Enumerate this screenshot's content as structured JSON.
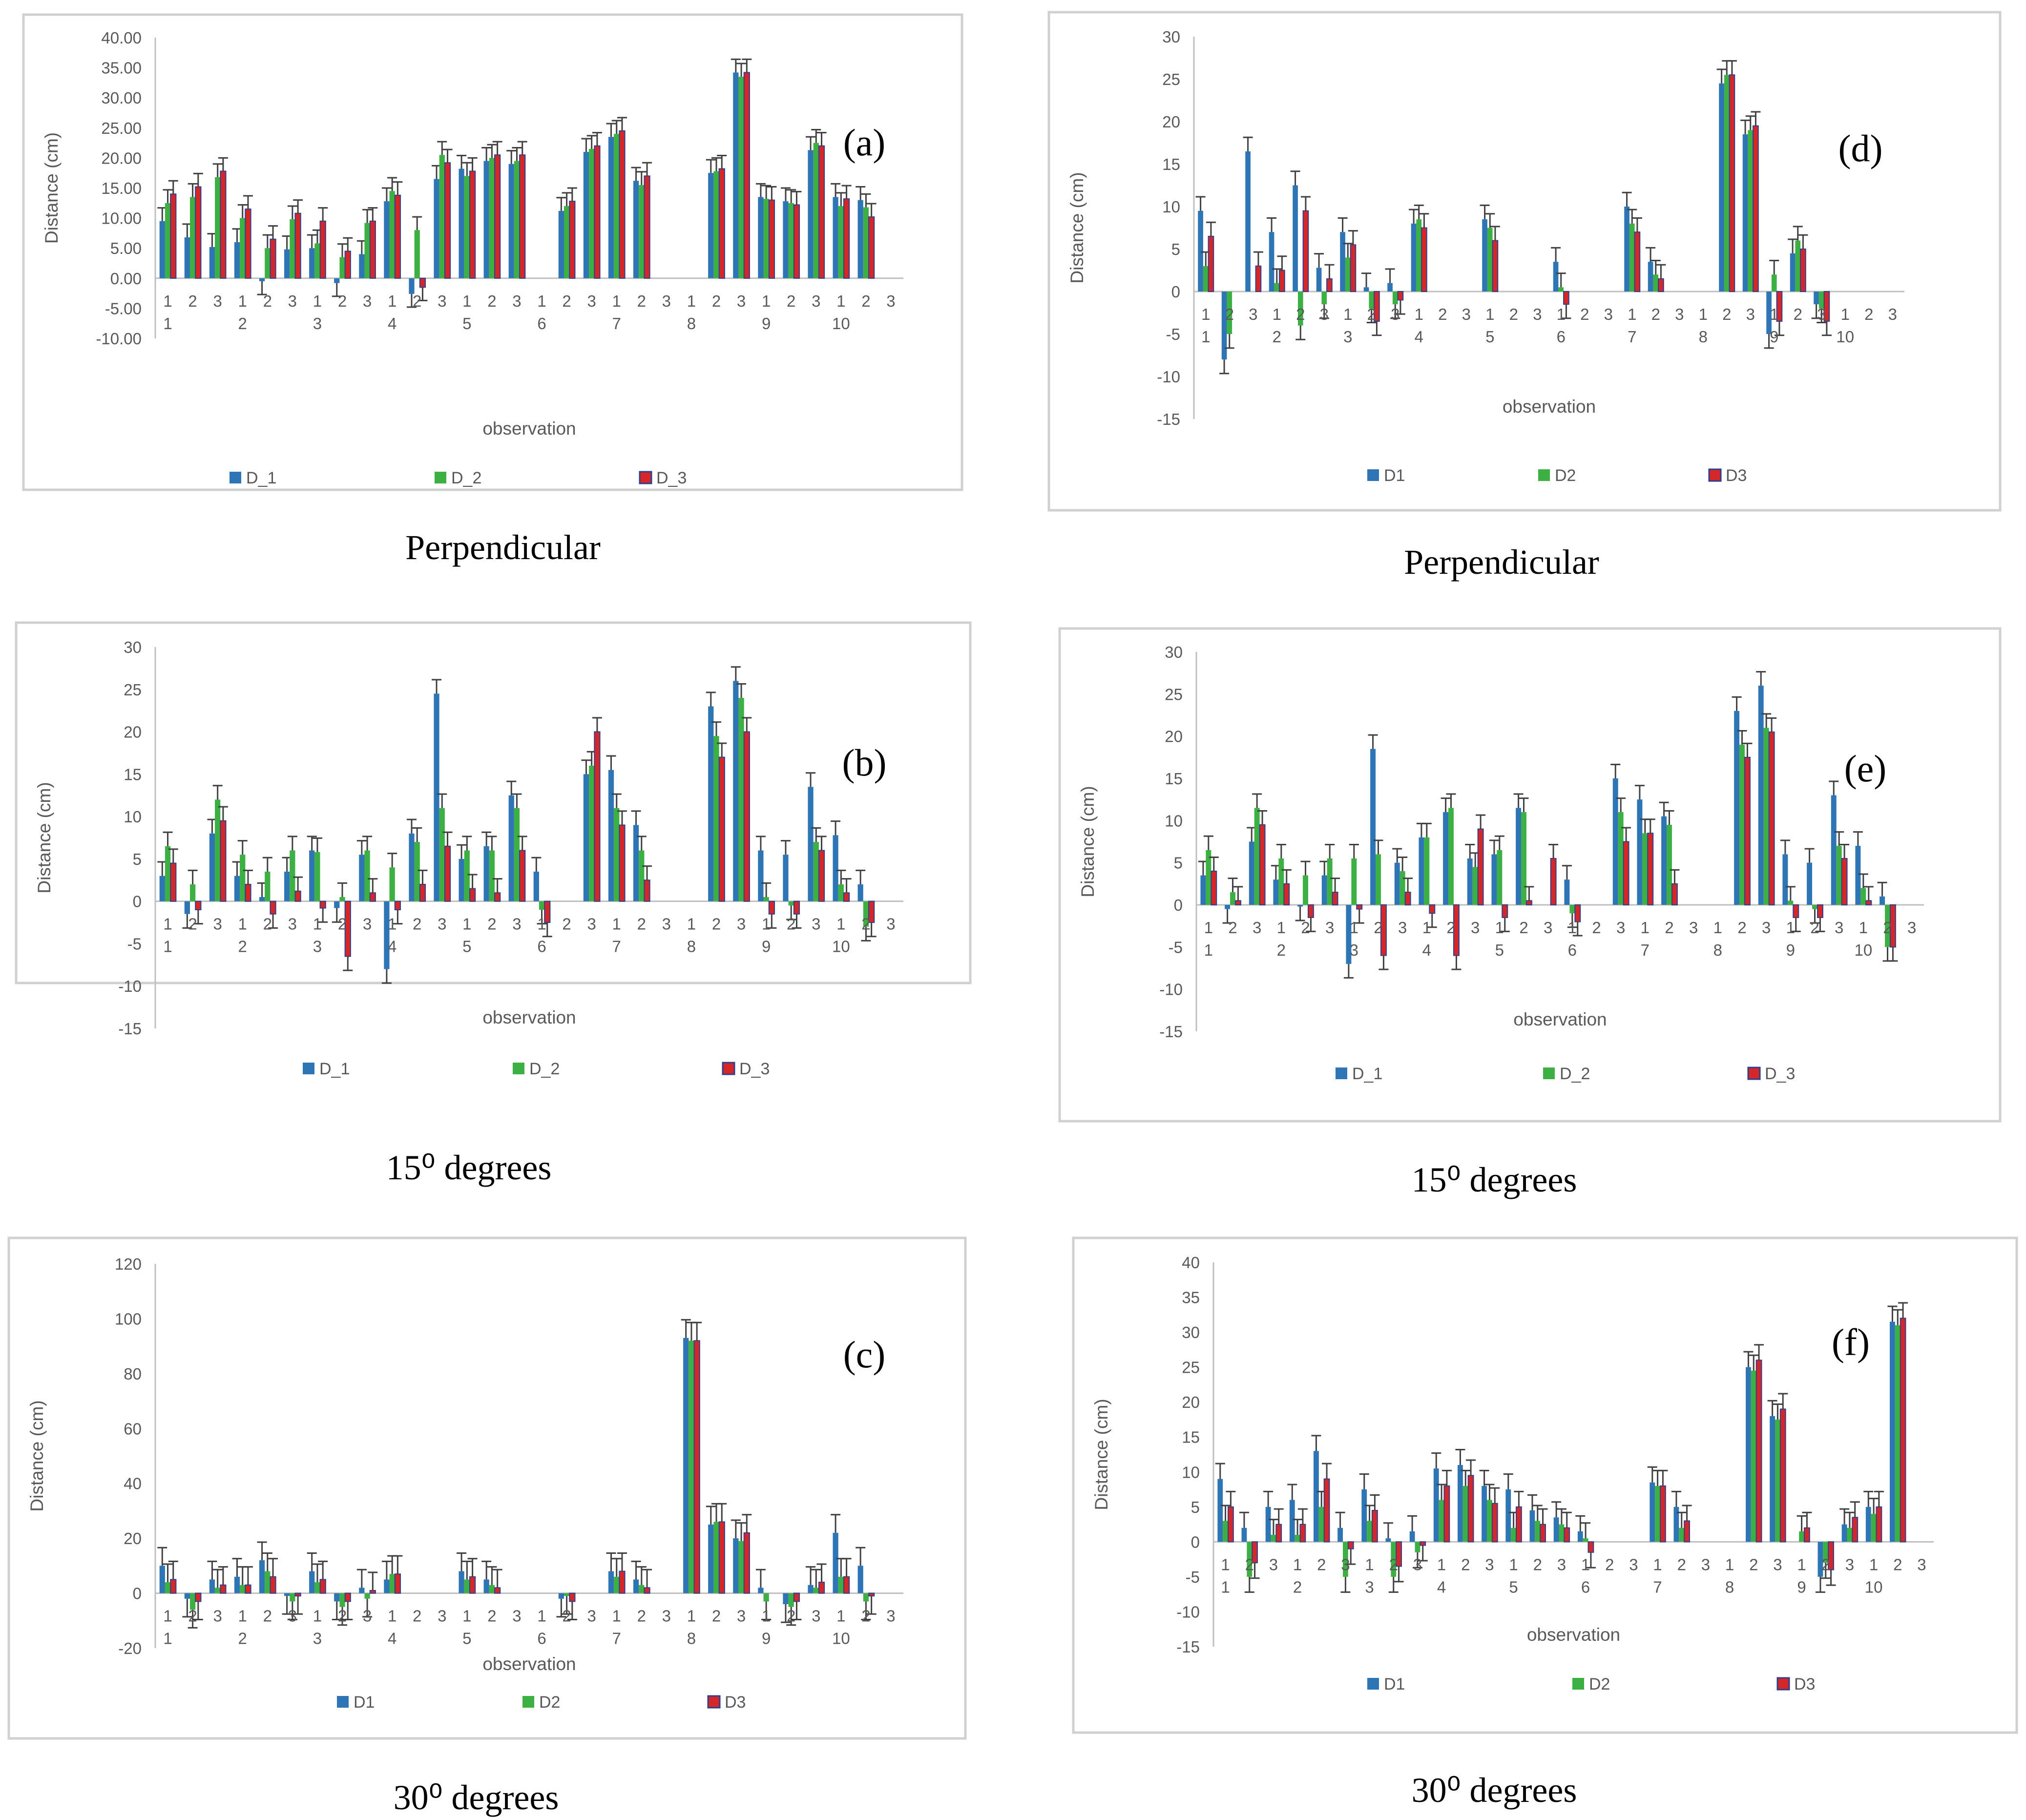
{
  "colors": {
    "D_1": "#2e75b6",
    "D_2": "#3cb043",
    "D_3": "#d62728",
    "D_3_border": "#2f3f8f"
  },
  "chart_data": [
    {
      "type": "bar",
      "panel": "(a)",
      "caption": "Perpendicular",
      "xlabel": "observation",
      "ylabel": "Distance (cm)",
      "ylim": [
        -10,
        40
      ],
      "ytick_labels": [
        "-10.00",
        "-5.00",
        "0.00",
        "5.00",
        "10.00",
        "15.00",
        "20.00",
        "25.00",
        "30.00",
        "35.00",
        "40.00"
      ],
      "group_labels": [
        "1",
        "2",
        "3",
        "4",
        "5",
        "6",
        "7",
        "8",
        "9",
        "10"
      ],
      "sub_labels": [
        "1",
        "2",
        "3"
      ],
      "series": [
        {
          "name": "D_1",
          "values": [
            9.5,
            6.8,
            5.2,
            6.0,
            -0.5,
            4.8,
            5.0,
            -0.8,
            4.0,
            12.8,
            -2.6,
            16.5,
            18.2,
            19.5,
            19.0,
            0,
            11.2,
            21.0,
            23.5,
            16.2,
            0,
            0,
            17.5,
            34.2,
            13.5,
            12.8,
            21.3,
            13.5,
            13.0,
            0
          ]
        },
        {
          "name": "D_2",
          "values": [
            12.5,
            13.5,
            16.8,
            10.0,
            5.0,
            9.8,
            5.8,
            3.5,
            9.2,
            14.5,
            8.0,
            20.5,
            17.0,
            20.0,
            19.5,
            0,
            12.0,
            21.5,
            24.0,
            15.5,
            0,
            0,
            17.8,
            33.5,
            13.2,
            12.5,
            22.5,
            12.0,
            11.8,
            0
          ]
        },
        {
          "name": "D_3",
          "values": [
            14.0,
            15.2,
            17.8,
            11.5,
            6.5,
            10.8,
            9.5,
            4.5,
            9.5,
            13.8,
            -1.5,
            19.2,
            17.8,
            20.5,
            20.5,
            0,
            12.8,
            22.0,
            24.5,
            17.0,
            0,
            0,
            18.2,
            34.2,
            13.0,
            12.2,
            22.0,
            13.2,
            10.2,
            0
          ]
        }
      ],
      "legend": [
        "D_1",
        "D_2",
        "D_3"
      ]
    },
    {
      "type": "bar",
      "panel": "(b)",
      "caption": "15⁰ degrees",
      "xlabel": "observation",
      "ylabel": "Distance (cm)",
      "ylim": [
        -15,
        30
      ],
      "ytick_labels": [
        "-15",
        "-10",
        "-5",
        "0",
        "5",
        "10",
        "15",
        "20",
        "25",
        "30"
      ],
      "group_labels": [
        "1",
        "2",
        "3",
        "4",
        "5",
        "6",
        "7",
        "8",
        "9",
        "10"
      ],
      "sub_labels": [
        "1",
        "2",
        "3"
      ],
      "series": [
        {
          "name": "D_1",
          "values": [
            3.0,
            -1.5,
            8.0,
            3.0,
            0.5,
            3.5,
            6.0,
            -0.8,
            5.5,
            -8.0,
            8.0,
            24.5,
            5.0,
            6.5,
            12.5,
            3.5,
            0,
            15.0,
            15.5,
            9.0,
            0,
            0,
            23.0,
            26.0,
            6.0,
            5.5,
            13.5,
            7.8,
            2.0,
            0
          ]
        },
        {
          "name": "D_2",
          "values": [
            6.5,
            2.0,
            12.0,
            5.5,
            3.5,
            6.0,
            5.8,
            0.5,
            6.0,
            4.0,
            7.0,
            11.0,
            6.0,
            6.0,
            11.0,
            -1.0,
            0,
            16.0,
            11.0,
            6.0,
            0,
            0,
            19.5,
            24.0,
            0.5,
            -0.5,
            7.0,
            2.0,
            -3.0,
            0
          ]
        },
        {
          "name": "D_3",
          "values": [
            4.5,
            -1.0,
            9.5,
            2.0,
            -1.5,
            1.2,
            -0.8,
            -6.5,
            1.0,
            -1.0,
            2.0,
            6.5,
            1.5,
            1.0,
            6.0,
            -2.5,
            0,
            20.0,
            9.0,
            2.5,
            0,
            0,
            17.0,
            20.0,
            -1.5,
            -1.5,
            6.0,
            1.0,
            -2.5,
            0
          ]
        }
      ],
      "legend": [
        "D_1",
        "D_2",
        "D_3"
      ]
    },
    {
      "type": "bar",
      "panel": "(c)",
      "caption": "30⁰ degrees",
      "xlabel": "observation",
      "ylabel": "Distance (cm)",
      "ylim": [
        -20,
        120
      ],
      "ytick_labels": [
        "-20",
        "0",
        "20",
        "40",
        "60",
        "80",
        "100",
        "120"
      ],
      "group_labels": [
        "1",
        "2",
        "3",
        "4",
        "5",
        "6",
        "7",
        "8",
        "9",
        "10"
      ],
      "sub_labels": [
        "1",
        "2",
        "3"
      ],
      "series": [
        {
          "name": "D1",
          "values": [
            10.0,
            -2.0,
            5.0,
            6.0,
            12.0,
            -1.0,
            8.0,
            -3.0,
            2.0,
            5.0,
            0,
            0,
            8.0,
            5.0,
            0,
            0,
            -2.0,
            0,
            8.0,
            5.0,
            0,
            93.0,
            25.0,
            20.0,
            2.0,
            -4.0,
            3.0,
            22.0,
            10.0,
            0
          ]
        },
        {
          "name": "D2",
          "values": [
            4.0,
            -6.0,
            2.0,
            3.0,
            8.0,
            -3.0,
            4.0,
            -5.0,
            -2.0,
            7.0,
            0,
            0,
            5.0,
            3.0,
            0,
            0,
            -1.0,
            0,
            6.0,
            3.0,
            0,
            92.0,
            26.0,
            19.0,
            -3.0,
            -5.0,
            2.0,
            6.0,
            -3.0,
            0
          ]
        },
        {
          "name": "D3",
          "values": [
            5.0,
            -3.0,
            3.0,
            3.0,
            6.0,
            -1.0,
            5.0,
            -3.0,
            1.0,
            7.0,
            0,
            0,
            6.0,
            2.0,
            0,
            0,
            -3.0,
            0,
            8.0,
            2.0,
            0,
            92.0,
            26.0,
            22.0,
            0,
            -3.0,
            4.0,
            6.0,
            -1.0,
            0
          ]
        }
      ],
      "legend": [
        "D1",
        "D2",
        "D3"
      ]
    },
    {
      "type": "bar",
      "panel": "(d)",
      "caption": "Perpendicular",
      "xlabel": "observation",
      "ylabel": "Distance (cm)",
      "ylim": [
        -15,
        30
      ],
      "ytick_labels": [
        "-15",
        "-10",
        "-5",
        "0",
        "5",
        "10",
        "15",
        "20",
        "25",
        "30"
      ],
      "group_labels": [
        "1",
        "2",
        "3",
        "4",
        "5",
        "6",
        "7",
        "8",
        "9",
        "10"
      ],
      "sub_labels": [
        "1",
        "2",
        "3"
      ],
      "series": [
        {
          "name": "D1",
          "values": [
            9.5,
            -8.0,
            16.5,
            7.0,
            12.5,
            2.8,
            7.0,
            0.5,
            1.0,
            8.0,
            0,
            0,
            8.5,
            0,
            0,
            3.5,
            0,
            0,
            10.0,
            3.5,
            0,
            0,
            24.5,
            18.5,
            -5.0,
            4.5,
            -1.5,
            0,
            0,
            0
          ]
        },
        {
          "name": "D2",
          "values": [
            3.0,
            -5.0,
            0,
            1.0,
            -4.0,
            -1.5,
            4.0,
            -2.0,
            -1.5,
            8.5,
            0,
            0,
            7.5,
            0,
            0,
            0.5,
            0,
            0,
            8.0,
            2.0,
            0,
            0,
            25.5,
            19.0,
            2.0,
            6.0,
            -2.0,
            0,
            0,
            0
          ]
        },
        {
          "name": "D3",
          "values": [
            6.5,
            0,
            3.0,
            2.5,
            9.5,
            1.5,
            5.5,
            -3.5,
            -1.0,
            7.5,
            0,
            0,
            6.0,
            0,
            0,
            -1.5,
            0,
            0,
            7.0,
            1.5,
            0,
            0,
            25.5,
            19.5,
            -3.5,
            5.0,
            -3.5,
            0,
            0,
            0
          ]
        }
      ],
      "legend": [
        "D1",
        "D2",
        "D3"
      ]
    },
    {
      "type": "bar",
      "panel": "(e)",
      "caption": "15⁰ degrees",
      "xlabel": "observation",
      "ylabel": "Distance (cm)",
      "ylim": [
        -15,
        30
      ],
      "ytick_labels": [
        "-15",
        "-10",
        "-5",
        "0",
        "5",
        "10",
        "15",
        "20",
        "25",
        "30"
      ],
      "group_labels": [
        "1",
        "2",
        "3",
        "4",
        "5",
        "6",
        "7",
        "8",
        "9",
        "10"
      ],
      "sub_labels": [
        "1",
        "2",
        "3"
      ],
      "series": [
        {
          "name": "D_1",
          "values": [
            3.5,
            -0.5,
            7.5,
            3.0,
            -0.2,
            3.5,
            -7.0,
            18.5,
            5.0,
            8.0,
            11.0,
            5.5,
            6.0,
            11.5,
            0,
            3.0,
            0,
            15.0,
            12.5,
            10.5,
            0,
            0,
            23.0,
            26.0,
            6.0,
            5.0,
            13.0,
            7.0,
            1.0,
            0
          ]
        },
        {
          "name": "D_2",
          "values": [
            6.5,
            1.5,
            11.5,
            5.5,
            3.5,
            5.5,
            5.5,
            6.0,
            4.0,
            8.0,
            11.5,
            4.5,
            6.5,
            11.0,
            0,
            -1.0,
            0,
            11.0,
            8.5,
            9.5,
            0,
            0,
            19.0,
            21.0,
            0.5,
            -0.5,
            7.0,
            2.0,
            -5.0,
            0
          ]
        },
        {
          "name": "D_3",
          "values": [
            4.0,
            0.5,
            9.5,
            2.5,
            -1.5,
            1.5,
            -0.5,
            -6.0,
            1.5,
            -1.0,
            -6.0,
            9.0,
            -1.5,
            0.5,
            5.5,
            -2.0,
            0,
            7.5,
            8.5,
            2.5,
            0,
            0,
            17.5,
            20.5,
            -1.5,
            -1.5,
            5.5,
            0.5,
            -5.0,
            0
          ]
        }
      ],
      "legend": [
        "D_1",
        "D_2",
        "D_3"
      ]
    },
    {
      "type": "bar",
      "panel": "(f)",
      "caption": "30⁰ degrees",
      "xlabel": "observation",
      "ylabel": "Distance (cm)",
      "ylim": [
        -15,
        40
      ],
      "ytick_labels": [
        "-15",
        "-10",
        "-5",
        "0",
        "5",
        "10",
        "15",
        "20",
        "25",
        "30",
        "35",
        "40"
      ],
      "group_labels": [
        "1",
        "2",
        "3",
        "4",
        "5",
        "6",
        "7",
        "8",
        "9",
        "10"
      ],
      "sub_labels": [
        "1",
        "2",
        "3"
      ],
      "series": [
        {
          "name": "D1",
          "values": [
            9.0,
            2.0,
            5.0,
            6.0,
            13.0,
            2.0,
            7.5,
            0.5,
            1.5,
            10.5,
            11.0,
            8.0,
            7.5,
            4.5,
            3.5,
            1.5,
            0,
            0,
            8.5,
            5.0,
            0,
            0,
            25.0,
            18.0,
            0,
            -5.0,
            2.5,
            5.0,
            31.5,
            0
          ]
        },
        {
          "name": "D2",
          "values": [
            3.0,
            -5.0,
            1.0,
            1.0,
            5.0,
            -5.0,
            3.0,
            -5.0,
            -1.5,
            6.0,
            8.0,
            6.0,
            2.0,
            3.0,
            2.5,
            0.5,
            0,
            0,
            8.0,
            2.0,
            0,
            0,
            24.5,
            17.5,
            1.5,
            -3.0,
            2.0,
            4.0,
            31.0,
            0
          ]
        },
        {
          "name": "D3",
          "values": [
            5.0,
            -3.0,
            2.5,
            2.5,
            9.0,
            -1.0,
            4.5,
            -3.5,
            -0.5,
            8.0,
            9.5,
            5.5,
            5.0,
            2.5,
            2.0,
            -1.5,
            0,
            0,
            8.0,
            3.0,
            0,
            0,
            26.0,
            19.0,
            2.0,
            -4.0,
            3.5,
            5.0,
            32.0,
            0
          ]
        }
      ],
      "legend": [
        "D1",
        "D2",
        "D3"
      ]
    }
  ]
}
